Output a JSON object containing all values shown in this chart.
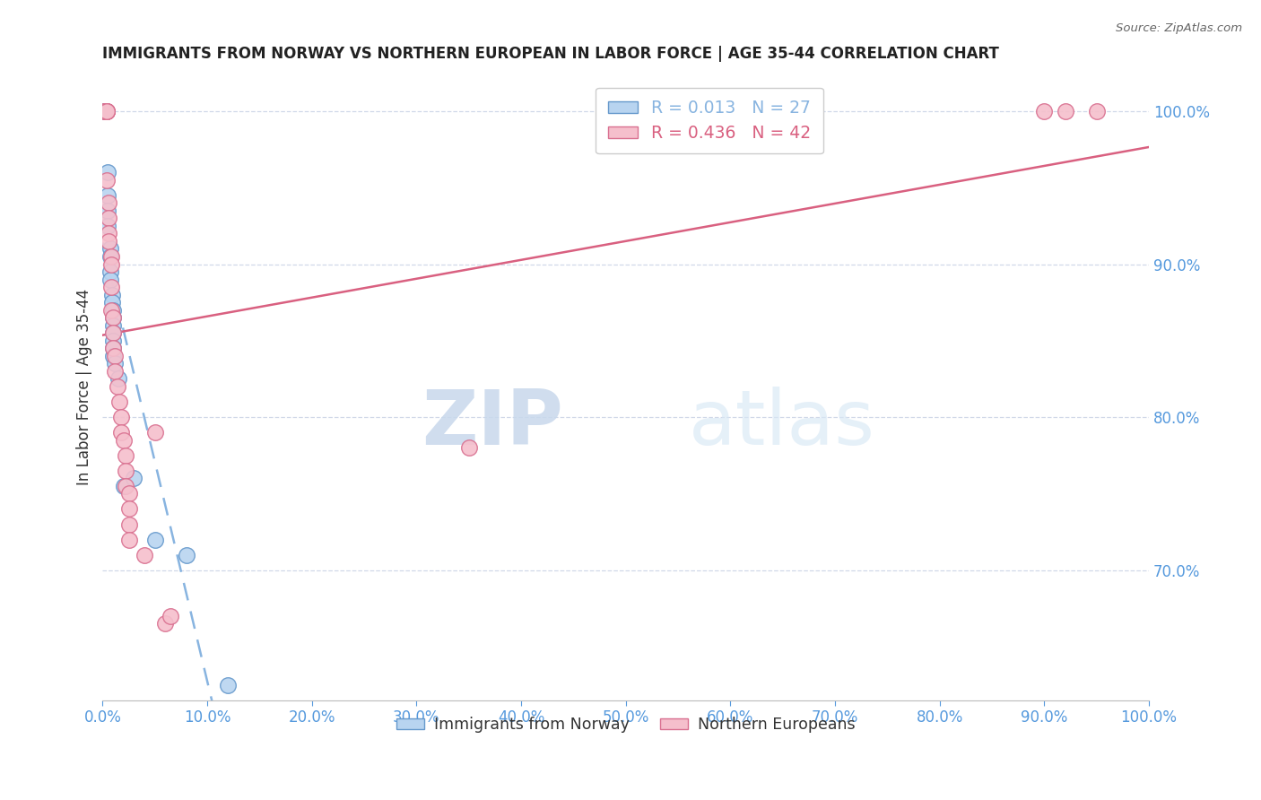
{
  "title": "IMMIGRANTS FROM NORWAY VS NORTHERN EUROPEAN IN LABOR FORCE | AGE 35-44 CORRELATION CHART",
  "source": "Source: ZipAtlas.com",
  "ylabel": "In Labor Force | Age 35-44",
  "xlim": [
    0.0,
    1.0
  ],
  "ylim": [
    0.615,
    1.025
  ],
  "yticks": [
    0.7,
    0.8,
    0.9,
    1.0
  ],
  "xticks": [
    0.0,
    0.1,
    0.2,
    0.3,
    0.4,
    0.5,
    0.6,
    0.7,
    0.8,
    0.9,
    1.0
  ],
  "norway_R": 0.013,
  "norway_N": 27,
  "neuropean_R": 0.436,
  "neuropean_N": 42,
  "norway_color": "#b8d4f0",
  "norway_edge_color": "#6699cc",
  "neuropean_color": "#f5bfcc",
  "neuropean_edge_color": "#d97090",
  "trend_norway_color": "#88b4e0",
  "trend_neuropean_color": "#d96080",
  "norway_x": [
    0.002,
    0.002,
    0.002,
    0.005,
    0.005,
    0.005,
    0.005,
    0.007,
    0.007,
    0.007,
    0.007,
    0.009,
    0.009,
    0.01,
    0.01,
    0.01,
    0.01,
    0.01,
    0.01,
    0.01,
    0.012,
    0.015,
    0.02,
    0.03,
    0.05,
    0.08,
    0.12
  ],
  "norway_y": [
    1.0,
    1.0,
    1.0,
    0.96,
    0.945,
    0.935,
    0.925,
    0.91,
    0.905,
    0.895,
    0.89,
    0.88,
    0.875,
    0.87,
    0.865,
    0.86,
    0.855,
    0.85,
    0.845,
    0.84,
    0.835,
    0.825,
    0.755,
    0.76,
    0.72,
    0.71,
    0.625
  ],
  "neuropean_x": [
    0.002,
    0.002,
    0.002,
    0.004,
    0.004,
    0.004,
    0.004,
    0.004,
    0.004,
    0.006,
    0.006,
    0.006,
    0.006,
    0.008,
    0.008,
    0.008,
    0.008,
    0.01,
    0.01,
    0.01,
    0.012,
    0.012,
    0.014,
    0.016,
    0.018,
    0.018,
    0.02,
    0.022,
    0.022,
    0.022,
    0.025,
    0.025,
    0.025,
    0.025,
    0.04,
    0.05,
    0.06,
    0.065,
    0.35,
    0.9,
    0.92,
    0.95
  ],
  "neuropean_y": [
    1.0,
    1.0,
    1.0,
    1.0,
    1.0,
    1.0,
    1.0,
    1.0,
    0.955,
    0.94,
    0.93,
    0.92,
    0.915,
    0.905,
    0.9,
    0.885,
    0.87,
    0.865,
    0.855,
    0.845,
    0.84,
    0.83,
    0.82,
    0.81,
    0.8,
    0.79,
    0.785,
    0.775,
    0.765,
    0.755,
    0.75,
    0.74,
    0.73,
    0.72,
    0.71,
    0.79,
    0.665,
    0.67,
    0.78,
    1.0,
    1.0,
    1.0
  ],
  "watermark_zip": "ZIP",
  "watermark_atlas": "atlas",
  "background_color": "#ffffff",
  "grid_color": "#d0d8e8",
  "axis_color": "#5599dd",
  "title_color": "#222222"
}
